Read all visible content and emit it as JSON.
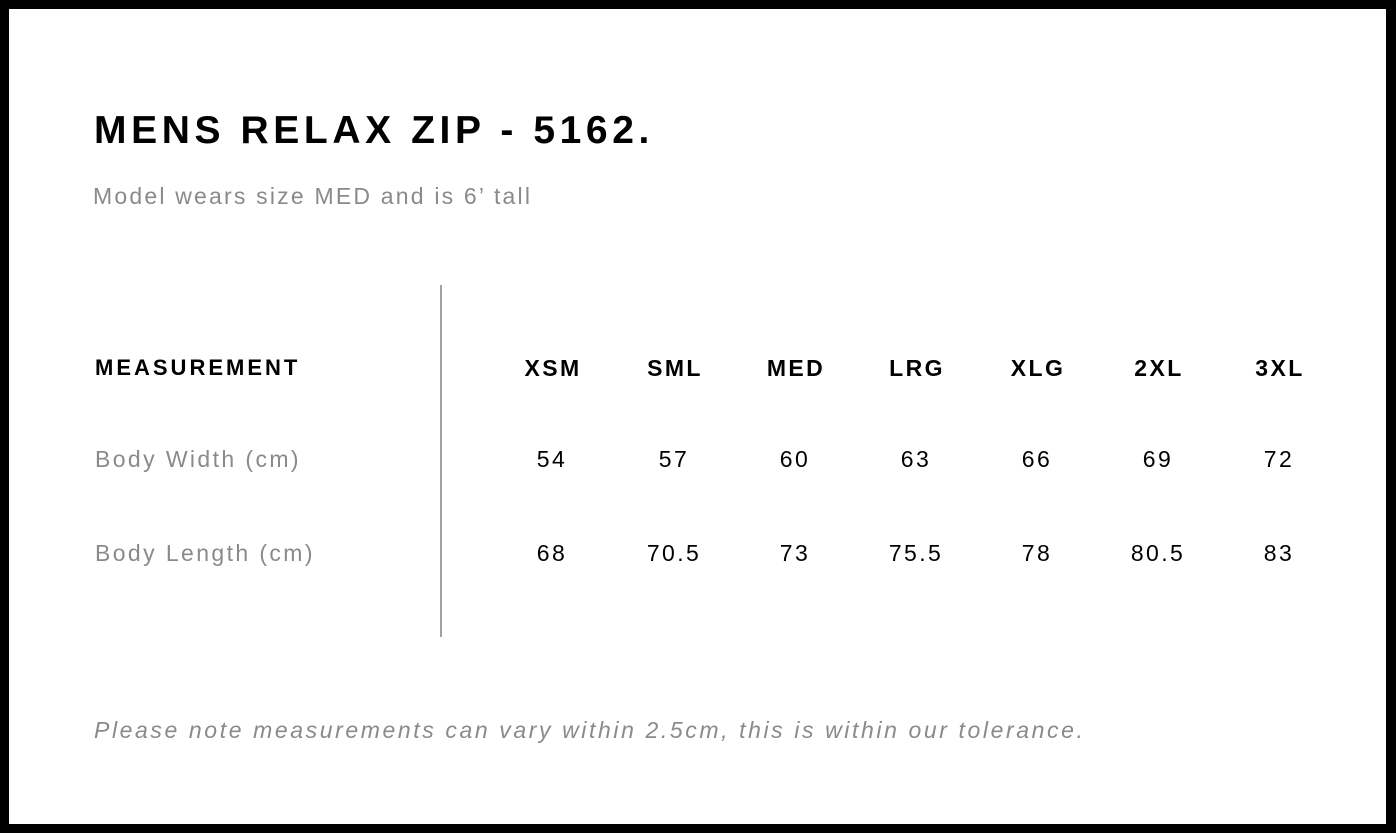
{
  "title": "MENS RELAX ZIP - 5162.",
  "subtitle": "Model wears size MED and is 6’ tall",
  "table": {
    "header_label": "MEASUREMENT",
    "sizes": [
      "XSM",
      "SML",
      "MED",
      "LRG",
      "XLG",
      "2XL",
      "3XL"
    ],
    "rows": [
      {
        "label": "Body Width (cm)",
        "values": [
          "54",
          "57",
          "60",
          "63",
          "66",
          "69",
          "72"
        ]
      },
      {
        "label": "Body Length (cm)",
        "values": [
          "68",
          "70.5",
          "73",
          "75.5",
          "78",
          "80.5",
          "83"
        ]
      }
    ]
  },
  "note": "Please note measurements can vary within 2.5cm, this is within our tolerance."
}
